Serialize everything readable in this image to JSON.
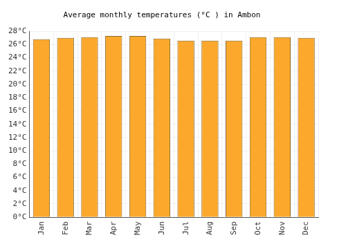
{
  "chart_data": {
    "type": "bar",
    "title": "Average monthly temperatures (°C ) in Ambon",
    "categories": [
      "Jan",
      "Feb",
      "Mar",
      "Apr",
      "May",
      "Jun",
      "Jul",
      "Aug",
      "Sep",
      "Oct",
      "Nov",
      "Dec"
    ],
    "values": [
      26.8,
      27.0,
      27.1,
      27.3,
      27.3,
      26.9,
      26.6,
      26.6,
      26.6,
      27.1,
      27.1,
      27.0
    ],
    "color": "#fca82c",
    "ylim": [
      0,
      28
    ],
    "yticks": [
      {
        "value": 0,
        "label": "0°C"
      },
      {
        "value": 2,
        "label": "2°C"
      },
      {
        "value": 4,
        "label": "4°C"
      },
      {
        "value": 6,
        "label": "6°C"
      },
      {
        "value": 8,
        "label": "8°C"
      },
      {
        "value": 10,
        "label": "10°C"
      },
      {
        "value": 12,
        "label": "12°C"
      },
      {
        "value": 14,
        "label": "14°C"
      },
      {
        "value": 16,
        "label": "16°C"
      },
      {
        "value": 18,
        "label": "18°C"
      },
      {
        "value": 20,
        "label": "20°C"
      },
      {
        "value": 22,
        "label": "22°C"
      },
      {
        "value": 24,
        "label": "24°C"
      },
      {
        "value": 26,
        "label": "26°C"
      },
      {
        "value": 28,
        "label": "28°C"
      }
    ],
    "grid": true
  }
}
